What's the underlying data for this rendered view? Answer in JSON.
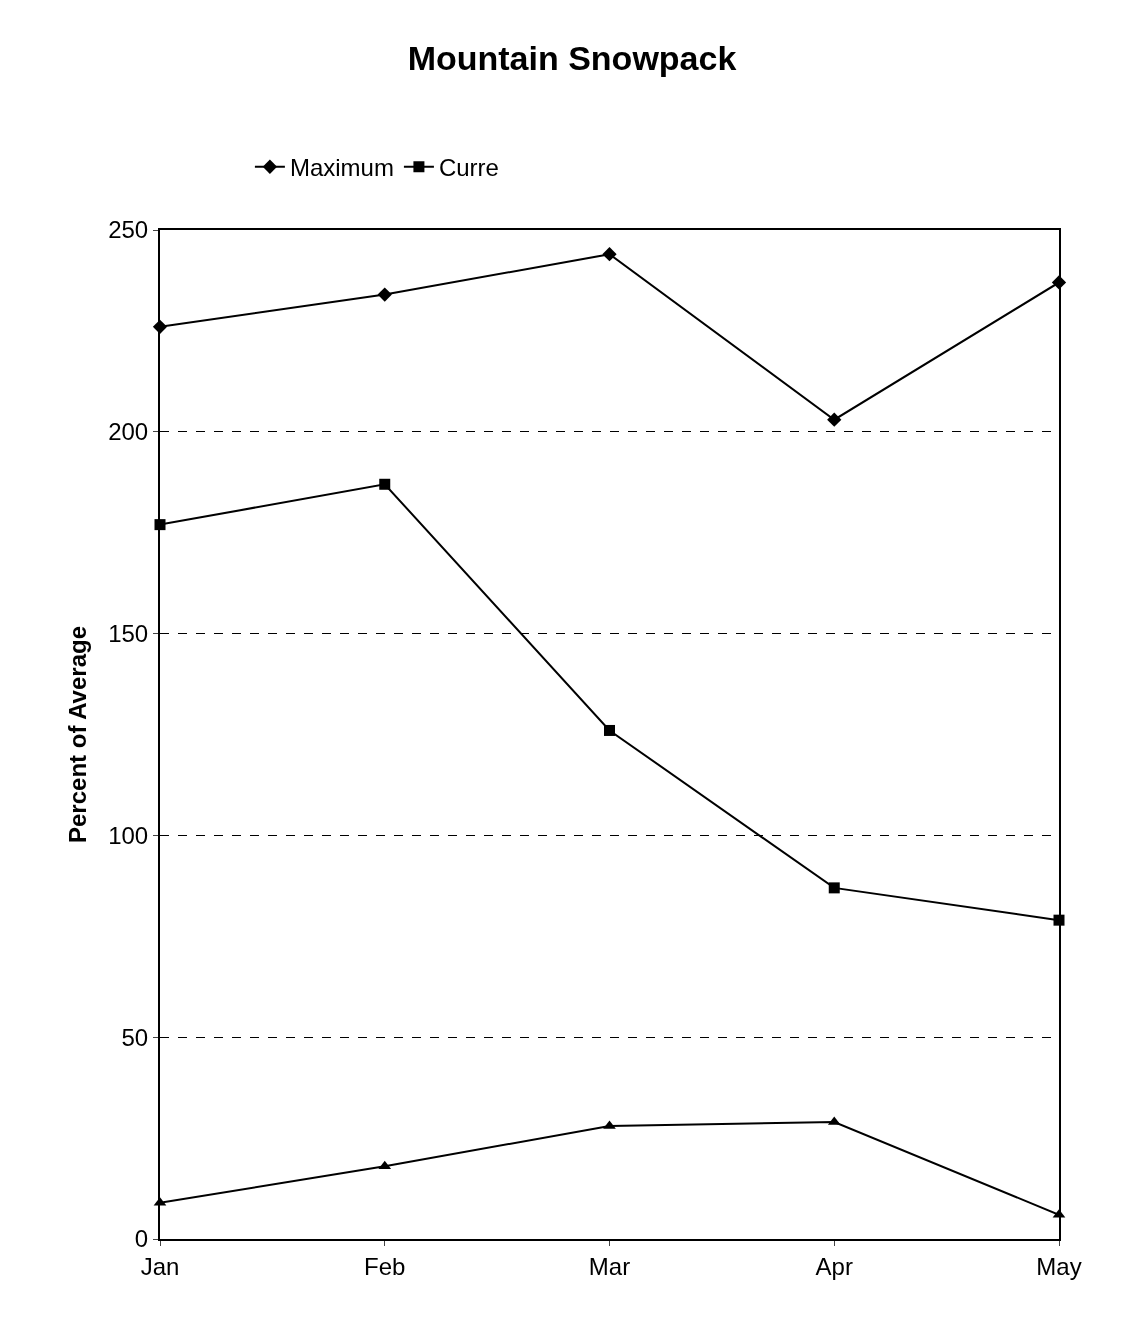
{
  "chart_data": {
    "type": "line",
    "title": "Mountain Snowpack",
    "ylabel": "Percent of Average",
    "categories": [
      "Jan",
      "Feb",
      "Mar",
      "Apr",
      "May"
    ],
    "series": [
      {
        "name": "Maximum",
        "color": "#000000",
        "marker": "diamond",
        "values": [
          226,
          234,
          244,
          203,
          237
        ]
      },
      {
        "name": "Curre",
        "color": "#000000",
        "marker": "square",
        "values": [
          177,
          187,
          126,
          87,
          79
        ]
      },
      {
        "color": "#000000",
        "marker": "triangle",
        "values": [
          9,
          18,
          28,
          29,
          6
        ]
      }
    ],
    "ylim": [
      0,
      250
    ],
    "yticks": [
      0,
      50,
      100,
      150,
      200,
      250
    ],
    "grid": "y",
    "legend": "top left",
    "line_style": "solid"
  }
}
